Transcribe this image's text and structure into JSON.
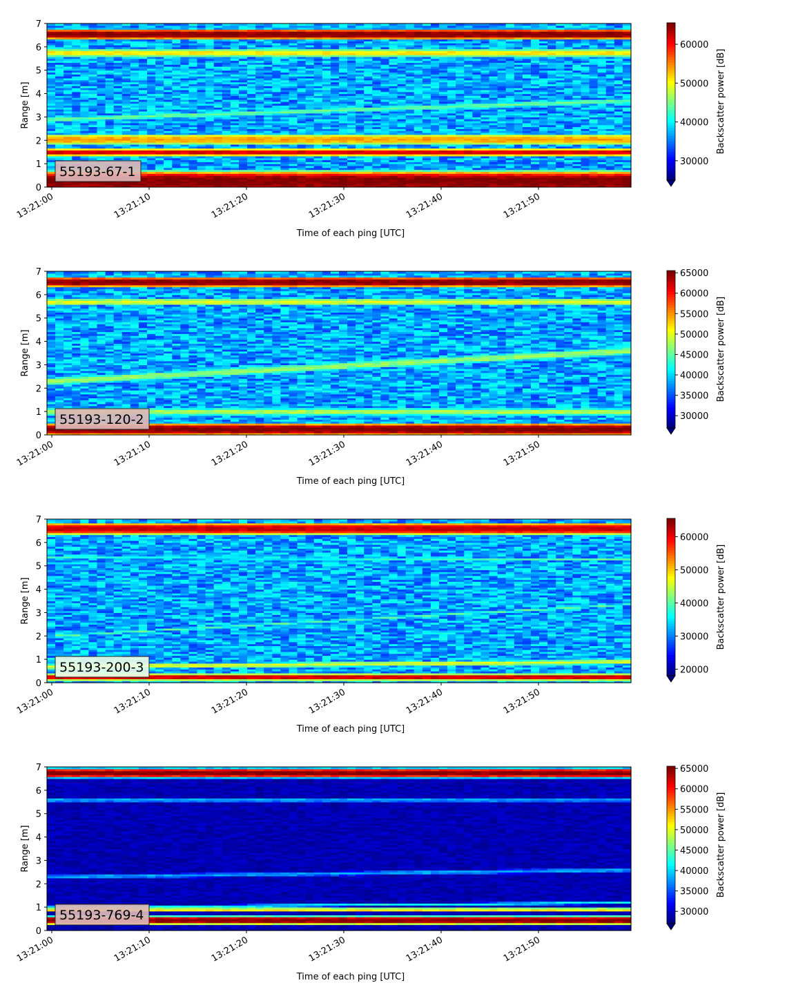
{
  "chart_data": [
    {
      "type": "heatmap",
      "label": "55193-67-1",
      "xlabel": "Time of each ping [UTC]",
      "ylabel": "Range [m]",
      "colorbar_label": "Backscatter power [dB]",
      "colormap": "jet",
      "xticks": [
        "13:21:00",
        "13:21:10",
        "13:21:20",
        "13:21:30",
        "13:21:40",
        "13:21:50"
      ],
      "yticks": [
        "0",
        "1",
        "2",
        "3",
        "4",
        "5",
        "6",
        "7"
      ],
      "ylim": [
        0,
        7
      ],
      "colorbar_ticks": [
        "30000",
        "40000",
        "50000",
        "60000"
      ],
      "clim": [
        25000,
        65535
      ],
      "bands": [
        {
          "name": "near-field",
          "start_range": 0.25,
          "end_range": 0.25,
          "width": 1.05,
          "value": 65535
        },
        {
          "name": "strong layer",
          "start_range": 1.5,
          "end_range": 1.5,
          "width": 0.35,
          "value": 62000
        },
        {
          "name": "yellow band",
          "start_range": 2.05,
          "end_range": 2.05,
          "width": 0.55,
          "value": 54000
        },
        {
          "name": "diagonal",
          "start_range": 2.9,
          "end_range": 3.7,
          "width": 0.3,
          "value": 44000
        },
        {
          "name": "upper band",
          "start_range": 5.75,
          "end_range": 5.75,
          "width": 0.4,
          "value": 51000
        },
        {
          "name": "top",
          "start_range": 6.55,
          "end_range": 6.55,
          "width": 0.5,
          "value": 65535
        }
      ]
    },
    {
      "type": "heatmap",
      "label": "55193-120-2",
      "xlabel": "Time of each ping [UTC]",
      "ylabel": "Range [m]",
      "colorbar_label": "Backscatter power [dB]",
      "colormap": "jet",
      "xticks": [
        "13:21:00",
        "13:21:10",
        "13:21:20",
        "13:21:30",
        "13:21:40",
        "13:21:50"
      ],
      "yticks": [
        "0",
        "1",
        "2",
        "3",
        "4",
        "5",
        "6",
        "7"
      ],
      "ylim": [
        0,
        7
      ],
      "colorbar_ticks": [
        "30000",
        "35000",
        "40000",
        "45000",
        "50000",
        "55000",
        "60000",
        "65000"
      ],
      "clim": [
        27000,
        65535
      ],
      "bands": [
        {
          "name": "near-field",
          "start_range": 0.25,
          "end_range": 0.25,
          "width": 0.6,
          "value": 65535
        },
        {
          "name": "bottom layer",
          "start_range": 1.0,
          "end_range": 1.0,
          "width": 0.4,
          "value": 48000
        },
        {
          "name": "diagonal",
          "start_range": 2.3,
          "end_range": 3.6,
          "width": 0.45,
          "value": 47000
        },
        {
          "name": "upper band",
          "start_range": 5.7,
          "end_range": 5.7,
          "width": 0.35,
          "value": 50000
        },
        {
          "name": "top",
          "start_range": 6.55,
          "end_range": 6.55,
          "width": 0.5,
          "value": 65535
        }
      ]
    },
    {
      "type": "heatmap",
      "label": "55193-200-3",
      "xlabel": "Time of each ping [UTC]",
      "ylabel": "Range [m]",
      "colorbar_label": "Backscatter power [dB]",
      "colormap": "jet",
      "xticks": [
        "13:21:00",
        "13:21:10",
        "13:21:20",
        "13:21:30",
        "13:21:40",
        "13:21:50"
      ],
      "yticks": [
        "0",
        "1",
        "2",
        "3",
        "4",
        "5",
        "6",
        "7"
      ],
      "ylim": [
        0,
        7
      ],
      "colorbar_ticks": [
        "20000",
        "30000",
        "40000",
        "50000",
        "60000"
      ],
      "clim": [
        18000,
        65535
      ],
      "bands": [
        {
          "name": "near-field",
          "start_range": 0.25,
          "end_range": 0.25,
          "width": 0.3,
          "value": 62000
        },
        {
          "name": "bottom layer",
          "start_range": 0.7,
          "end_range": 0.9,
          "width": 0.25,
          "value": 46000
        },
        {
          "name": "diagonal",
          "start_range": 2.0,
          "end_range": 3.35,
          "width": 0.12,
          "value": 40000
        },
        {
          "name": "upper line",
          "start_range": 5.35,
          "end_range": 5.3,
          "width": 0.12,
          "value": 40000
        },
        {
          "name": "top",
          "start_range": 6.6,
          "end_range": 6.6,
          "width": 0.55,
          "value": 62000
        }
      ]
    },
    {
      "type": "heatmap",
      "label": "55193-769-4",
      "xlabel": "Time of each ping [UTC]",
      "ylabel": "Range [m]",
      "colorbar_label": "Backscatter power [dB]",
      "colormap": "jet",
      "xticks": [
        "13:21:00",
        "13:21:10",
        "13:21:20",
        "13:21:30",
        "13:21:40",
        "13:21:50"
      ],
      "yticks": [
        "0",
        "1",
        "2",
        "3",
        "4",
        "5",
        "6",
        "7"
      ],
      "ylim": [
        0,
        7
      ],
      "colorbar_ticks": [
        "30000",
        "35000",
        "40000",
        "45000",
        "50000",
        "55000",
        "60000",
        "65000"
      ],
      "clim": [
        27000,
        65535
      ],
      "bands": [
        {
          "name": "near-field",
          "start_range": 0.45,
          "end_range": 0.45,
          "width": 0.4,
          "value": 65535
        },
        {
          "name": "yellow layer",
          "start_range": 0.9,
          "end_range": 0.9,
          "width": 0.2,
          "value": 52000
        },
        {
          "name": "rising edge",
          "start_range": 1.0,
          "end_range": 1.2,
          "width": 0.15,
          "value": 42000
        },
        {
          "name": "diagonal",
          "start_range": 2.3,
          "end_range": 2.6,
          "width": 0.25,
          "value": 38000
        },
        {
          "name": "upper blobs",
          "start_range": 5.6,
          "end_range": 5.6,
          "width": 0.25,
          "value": 38000
        },
        {
          "name": "top",
          "start_range": 6.75,
          "end_range": 6.75,
          "width": 0.45,
          "value": 65535
        }
      ]
    }
  ]
}
